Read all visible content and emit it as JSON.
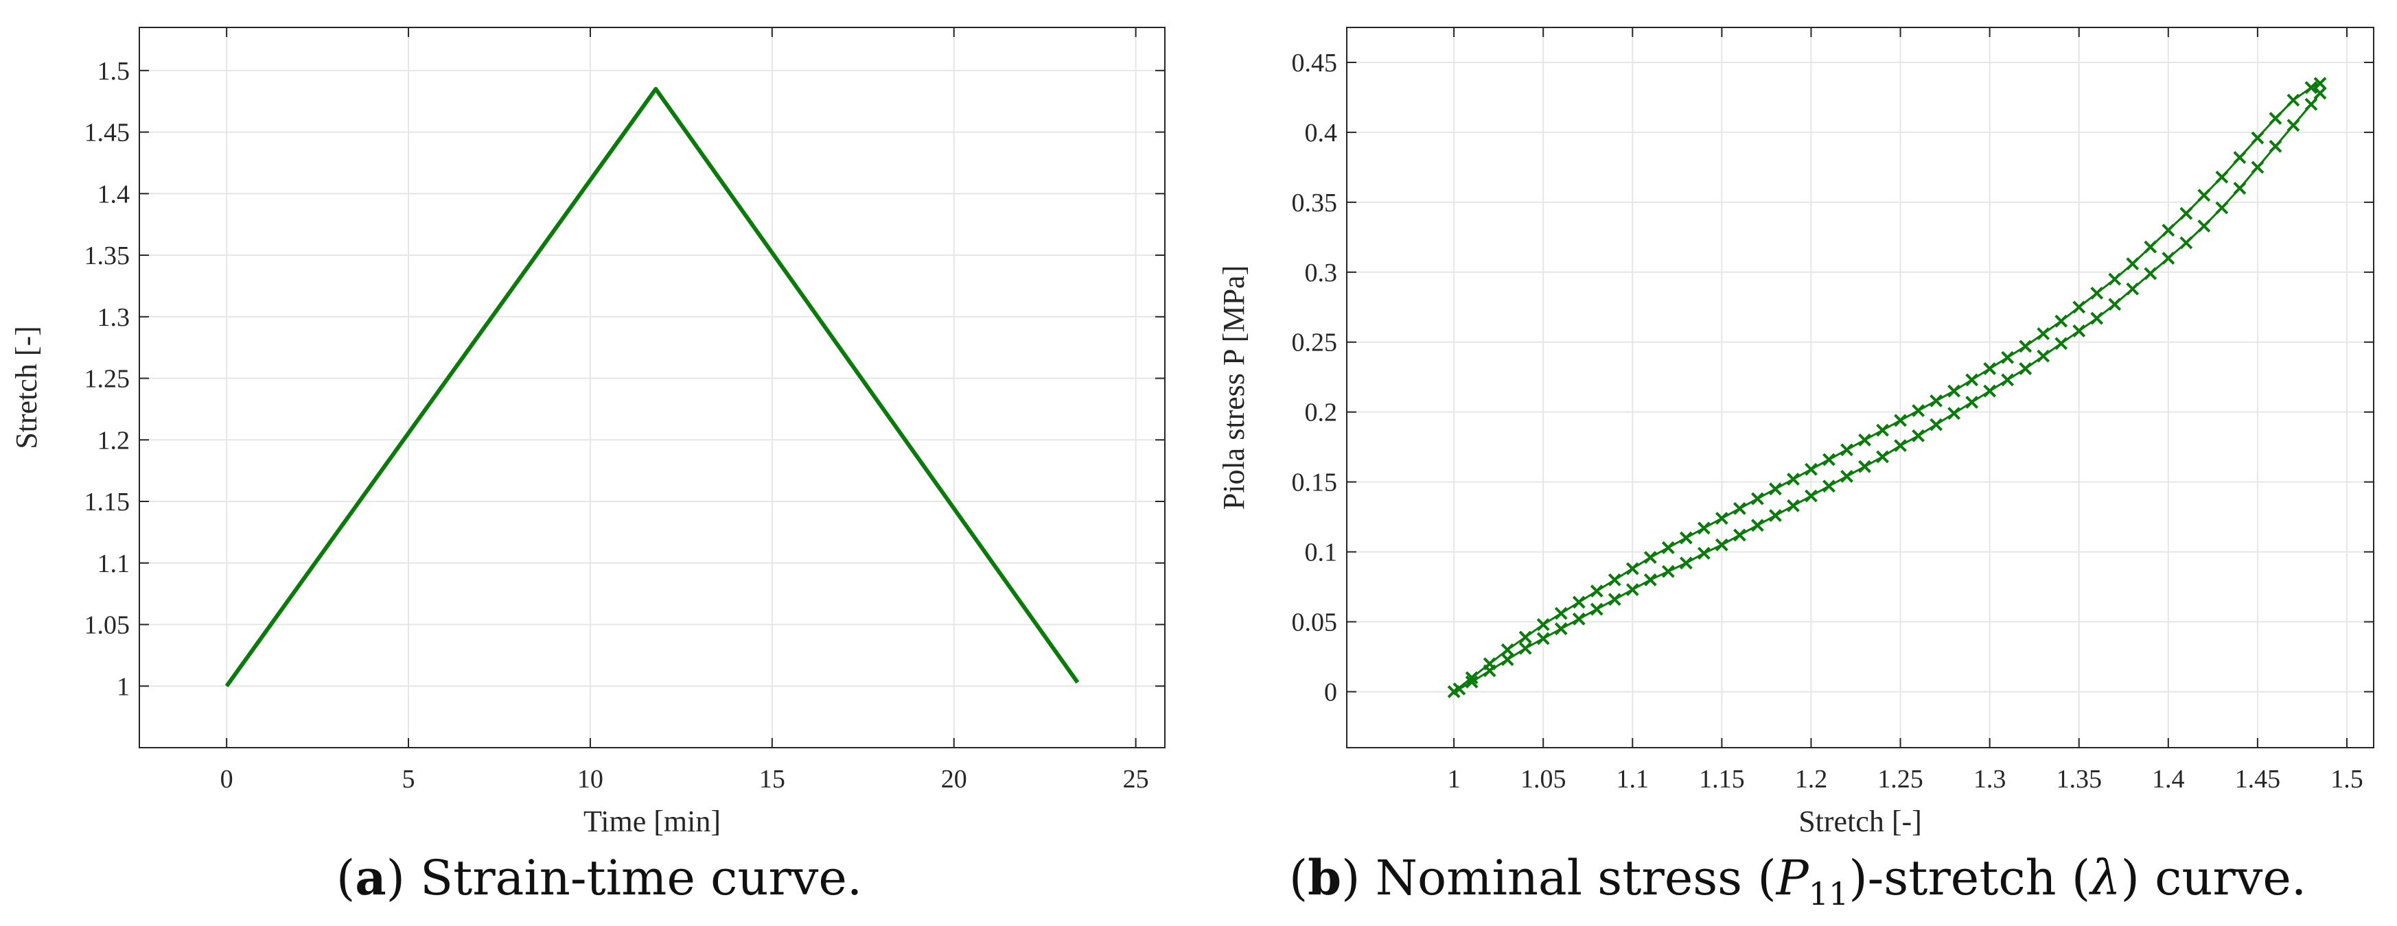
{
  "colors": {
    "series": "#0a7a0a",
    "grid": "#e6e6e6",
    "axis": "#262626"
  },
  "chart_data": [
    {
      "id": "a",
      "type": "line",
      "xlabel": "Time [min]",
      "ylabel": "Stretch [-]",
      "xlim": [
        -2.4,
        25.8
      ],
      "ylim": [
        0.95,
        1.535
      ],
      "xticks": [
        0,
        5,
        10,
        15,
        20,
        25
      ],
      "yticks": [
        1,
        1.05,
        1.1,
        1.15,
        1.2,
        1.25,
        1.3,
        1.35,
        1.4,
        1.45,
        1.5
      ],
      "grid": true,
      "series": [
        {
          "name": "stretch",
          "x": [
            0,
            11.8,
            23.4
          ],
          "y": [
            1.0,
            1.485,
            1.003
          ]
        }
      ]
    },
    {
      "id": "b",
      "type": "scatter",
      "marker": "x",
      "xlabel": "Stretch [-]",
      "ylabel": "Piola stress P [MPa]",
      "xlim": [
        0.94,
        1.515
      ],
      "ylim": [
        -0.04,
        0.475
      ],
      "xticks": [
        1,
        1.05,
        1.1,
        1.15,
        1.2,
        1.25,
        1.3,
        1.35,
        1.4,
        1.45,
        1.5
      ],
      "yticks": [
        0,
        0.05,
        0.1,
        0.15,
        0.2,
        0.25,
        0.3,
        0.35,
        0.4,
        0.45
      ],
      "grid": true,
      "series": [
        {
          "name": "loading",
          "x": [
            1.0,
            1.01,
            1.02,
            1.03,
            1.04,
            1.05,
            1.06,
            1.07,
            1.08,
            1.09,
            1.1,
            1.11,
            1.12,
            1.13,
            1.14,
            1.15,
            1.16,
            1.17,
            1.18,
            1.19,
            1.2,
            1.21,
            1.22,
            1.23,
            1.24,
            1.25,
            1.26,
            1.27,
            1.28,
            1.29,
            1.3,
            1.31,
            1.32,
            1.33,
            1.34,
            1.35,
            1.36,
            1.37,
            1.38,
            1.39,
            1.4,
            1.41,
            1.42,
            1.43,
            1.44,
            1.45,
            1.46,
            1.47,
            1.48,
            1.485
          ],
          "y": [
            0.0,
            0.01,
            0.02,
            0.03,
            0.039,
            0.048,
            0.056,
            0.064,
            0.072,
            0.08,
            0.088,
            0.096,
            0.103,
            0.11,
            0.117,
            0.124,
            0.131,
            0.138,
            0.145,
            0.152,
            0.159,
            0.166,
            0.173,
            0.18,
            0.187,
            0.194,
            0.201,
            0.208,
            0.215,
            0.223,
            0.231,
            0.239,
            0.247,
            0.256,
            0.265,
            0.275,
            0.285,
            0.295,
            0.306,
            0.318,
            0.33,
            0.342,
            0.355,
            0.368,
            0.382,
            0.396,
            0.41,
            0.423,
            0.432,
            0.435
          ]
        },
        {
          "name": "unloading",
          "x": [
            1.485,
            1.48,
            1.47,
            1.46,
            1.45,
            1.44,
            1.43,
            1.42,
            1.41,
            1.4,
            1.39,
            1.38,
            1.37,
            1.36,
            1.35,
            1.34,
            1.33,
            1.32,
            1.31,
            1.3,
            1.29,
            1.28,
            1.27,
            1.26,
            1.25,
            1.24,
            1.23,
            1.22,
            1.21,
            1.2,
            1.19,
            1.18,
            1.17,
            1.16,
            1.15,
            1.14,
            1.13,
            1.12,
            1.11,
            1.1,
            1.09,
            1.08,
            1.07,
            1.06,
            1.05,
            1.04,
            1.03,
            1.02,
            1.01,
            1.003
          ],
          "y": [
            0.428,
            0.42,
            0.405,
            0.39,
            0.375,
            0.36,
            0.346,
            0.333,
            0.321,
            0.31,
            0.299,
            0.288,
            0.277,
            0.267,
            0.258,
            0.249,
            0.24,
            0.231,
            0.223,
            0.215,
            0.207,
            0.199,
            0.191,
            0.183,
            0.176,
            0.168,
            0.161,
            0.154,
            0.147,
            0.14,
            0.133,
            0.126,
            0.119,
            0.112,
            0.105,
            0.099,
            0.092,
            0.086,
            0.08,
            0.073,
            0.066,
            0.059,
            0.052,
            0.045,
            0.038,
            0.031,
            0.023,
            0.015,
            0.007,
            0.002
          ]
        }
      ]
    }
  ],
  "captions": {
    "a": {
      "label": "a",
      "text": "Strain-time curve."
    },
    "b": {
      "label": "b",
      "pre": "Nominal stress (",
      "sym1": "P",
      "sub1": "11",
      "mid": ")-stretch (",
      "sym2": "λ",
      "post": ") curve."
    }
  }
}
